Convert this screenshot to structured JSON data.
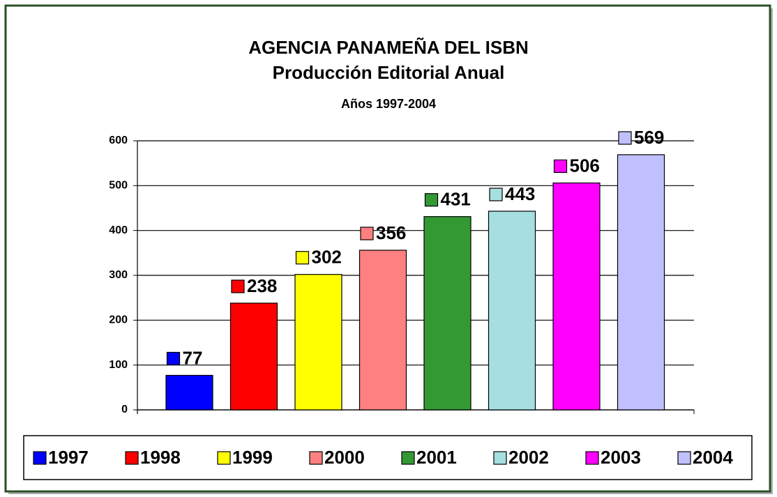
{
  "chart_data": {
    "type": "bar",
    "title": "AGENCIA PANAMEÑA DEL ISBN",
    "subtitle": [
      "Producción Editorial Anual",
      "Años 1997-2004"
    ],
    "categories": [
      "1997",
      "1998",
      "1999",
      "2000",
      "2001",
      "2002",
      "2003",
      "2004"
    ],
    "values": [
      77,
      238,
      302,
      356,
      431,
      443,
      506,
      569
    ],
    "colors": [
      "#0000ff",
      "#ff0000",
      "#ffff00",
      "#ff8080",
      "#339933",
      "#a6dfe0",
      "#ff00ff",
      "#c0c0ff"
    ],
    "ylim": [
      0,
      600
    ],
    "yticks": [
      0,
      100,
      200,
      300,
      400,
      500,
      600
    ],
    "grid": true,
    "legend": "bottom"
  }
}
